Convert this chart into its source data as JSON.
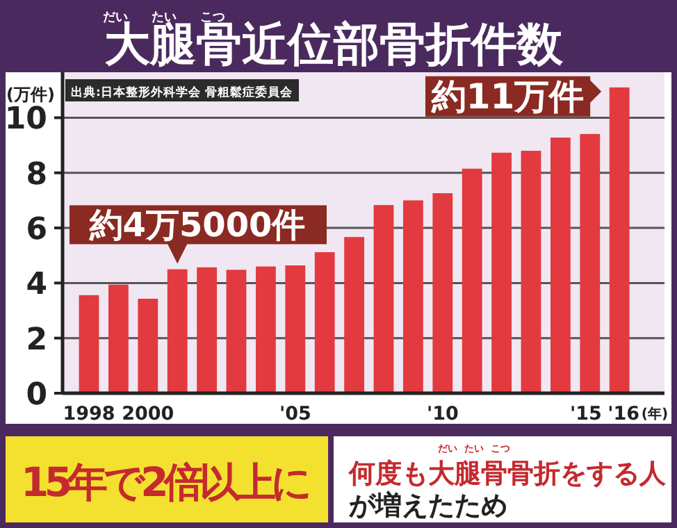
{
  "chart_data": {
    "type": "bar",
    "title": "大腿骨近位部骨折件数",
    "xlabel": "(年)",
    "ylabel": "(万件)",
    "categories": [
      "1998",
      null,
      "2000",
      null,
      null,
      null,
      null,
      "'05",
      null,
      null,
      null,
      null,
      "'10",
      null,
      null,
      null,
      null,
      "'15",
      "'16"
    ],
    "values": [
      3.56,
      3.94,
      3.43,
      4.5,
      4.57,
      4.48,
      4.6,
      4.64,
      5.12,
      5.67,
      6.83,
      7.0,
      7.26,
      8.15,
      8.73,
      8.8,
      9.28,
      9.41,
      11.1
    ],
    "color": "#e23a3f",
    "ylim": [
      0,
      11.6
    ],
    "yticks": [
      0,
      2,
      4,
      6,
      8,
      10
    ],
    "grid": "y",
    "annotations": [
      "出典:日本整形外科学会 骨粗鬆症委員会",
      {
        "text": "約4万5000件",
        "y": 4.5
      },
      "約11万件",
      "15年で2倍以上に",
      "何度も大腿骨骨折をする人が増えたため",
      "だい",
      "たい",
      "こつ",
      "だい",
      "たい",
      "こつ"
    ]
  }
}
